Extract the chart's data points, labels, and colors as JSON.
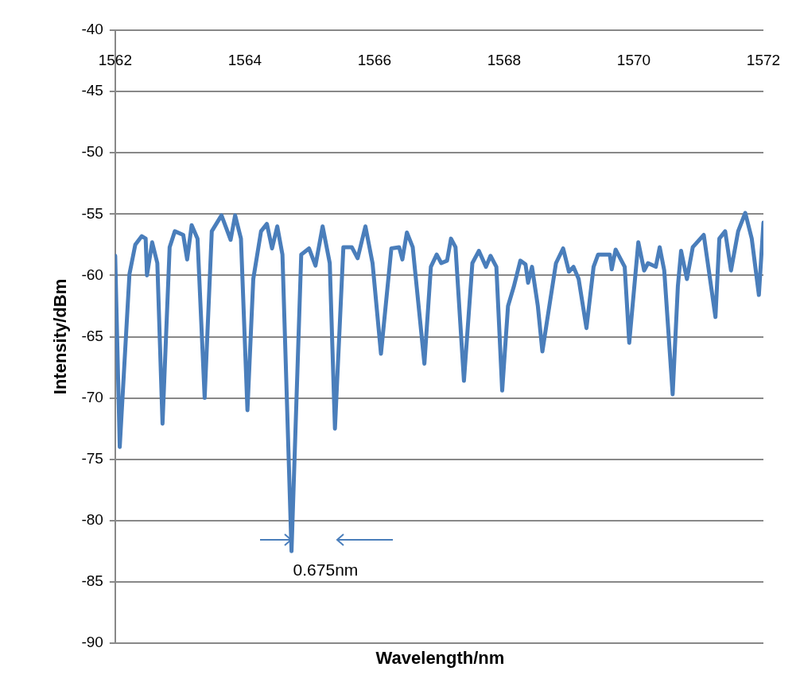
{
  "chart_data": {
    "type": "line",
    "xlabel": "Wavelength/nm",
    "ylabel": "Intensity/dBm",
    "color": "#4a7ebb",
    "grid": "y",
    "xlim": [
      1562,
      1572
    ],
    "xticks": [
      1562,
      1564,
      1566,
      1568,
      1570,
      1572
    ],
    "ylim": [
      -90,
      -40
    ],
    "yticks": [
      -90,
      -85,
      -80,
      -75,
      -70,
      -65,
      -60,
      -55,
      -50,
      -45,
      -40
    ],
    "annotations": [
      {
        "text": "0.675nm",
        "x": 1564.72,
        "y": -82.5
      }
    ],
    "x": [
      1562.0,
      1562.07,
      1562.22,
      1562.31,
      1562.41,
      1562.47,
      1562.49,
      1562.57,
      1562.65,
      1562.73,
      1562.84,
      1562.92,
      1563.05,
      1563.11,
      1563.18,
      1563.27,
      1563.38,
      1563.49,
      1563.64,
      1563.78,
      1563.85,
      1563.94,
      1564.04,
      1564.13,
      1564.25,
      1564.34,
      1564.42,
      1564.5,
      1564.58,
      1564.72,
      1564.87,
      1564.99,
      1565.09,
      1565.2,
      1565.31,
      1565.39,
      1565.52,
      1565.65,
      1565.74,
      1565.86,
      1565.97,
      1566.1,
      1566.26,
      1566.38,
      1566.43,
      1566.5,
      1566.59,
      1566.77,
      1566.87,
      1566.96,
      1567.03,
      1567.12,
      1567.18,
      1567.25,
      1567.38,
      1567.51,
      1567.61,
      1567.72,
      1567.79,
      1567.88,
      1567.97,
      1568.06,
      1568.15,
      1568.25,
      1568.33,
      1568.37,
      1568.43,
      1568.52,
      1568.59,
      1568.68,
      1568.8,
      1568.91,
      1569.0,
      1569.07,
      1569.15,
      1569.27,
      1569.38,
      1569.45,
      1569.63,
      1569.66,
      1569.72,
      1569.86,
      1569.93,
      1570.07,
      1570.16,
      1570.22,
      1570.34,
      1570.4,
      1570.47,
      1570.6,
      1570.68,
      1570.73,
      1570.82,
      1570.91,
      1571.08,
      1571.26,
      1571.32,
      1571.41,
      1571.5,
      1571.61,
      1571.72,
      1571.82,
      1571.93,
      1572.0
    ],
    "values": [
      -58.4,
      -74.0,
      -59.9,
      -57.5,
      -56.8,
      -57.0,
      -60.0,
      -57.3,
      -59.0,
      -72.1,
      -57.7,
      -56.4,
      -56.7,
      -58.7,
      -55.9,
      -57.0,
      -70.0,
      -56.4,
      -55.1,
      -57.1,
      -55.1,
      -57.0,
      -71.0,
      -60.3,
      -56.4,
      -55.8,
      -57.8,
      -56.0,
      -58.3,
      -82.5,
      -58.3,
      -57.8,
      -59.2,
      -56.0,
      -59.0,
      -72.5,
      -57.7,
      -57.7,
      -58.6,
      -56.0,
      -59.0,
      -66.4,
      -57.8,
      -57.7,
      -58.7,
      -56.5,
      -57.7,
      -67.2,
      -59.3,
      -58.3,
      -59.0,
      -58.8,
      -57.0,
      -57.7,
      -68.6,
      -59.0,
      -58.0,
      -59.3,
      -58.4,
      -59.3,
      -69.4,
      -62.5,
      -60.9,
      -58.8,
      -59.1,
      -60.6,
      -59.3,
      -62.5,
      -66.2,
      -63.1,
      -59.0,
      -57.8,
      -59.7,
      -59.3,
      -60.3,
      -64.3,
      -59.3,
      -58.3,
      -58.3,
      -59.5,
      -57.9,
      -59.3,
      -65.5,
      -57.3,
      -59.6,
      -59.0,
      -59.3,
      -57.7,
      -59.6,
      -69.7,
      -60.9,
      -58.0,
      -60.3,
      -57.7,
      -56.7,
      -63.4,
      -57.0,
      -56.4,
      -59.6,
      -56.4,
      -54.9,
      -57.0,
      -61.6,
      -55.7
    ]
  }
}
